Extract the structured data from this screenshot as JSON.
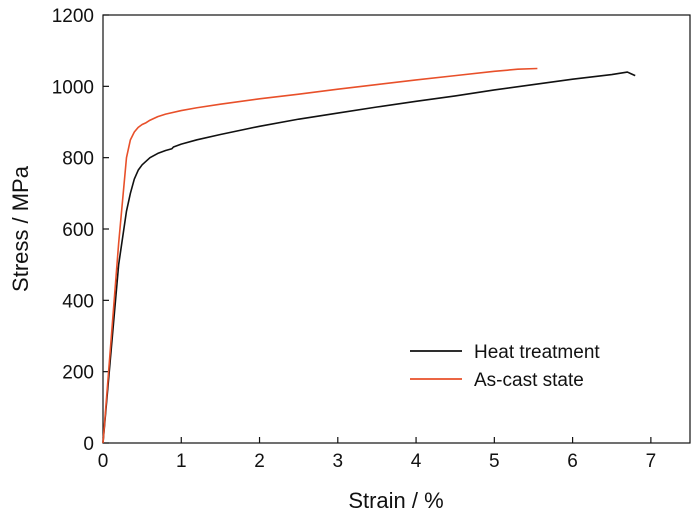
{
  "chart_data": {
    "type": "line",
    "title": "",
    "xlabel": "Strain / %",
    "ylabel": "Stress / MPa",
    "xlim": [
      0,
      7.5
    ],
    "ylim": [
      0,
      1200
    ],
    "xticks": [
      "0",
      "1",
      "2",
      "3",
      "4",
      "5",
      "6",
      "7"
    ],
    "yticks": [
      "0",
      "200",
      "400",
      "600",
      "800",
      "1000",
      "1200"
    ],
    "grid": false,
    "legend_position": "lower-right",
    "series": [
      {
        "name": "Heat treatment",
        "color": "#111111",
        "x": [
          0,
          0.1,
          0.2,
          0.3,
          0.35,
          0.4,
          0.45,
          0.5,
          0.6,
          0.7,
          0.8,
          0.88,
          0.9,
          1.0,
          1.2,
          1.5,
          2.0,
          2.5,
          3.0,
          3.5,
          4.0,
          4.5,
          5.0,
          5.5,
          6.0,
          6.5,
          6.7,
          6.75,
          6.8
        ],
        "y": [
          0,
          250,
          500,
          650,
          700,
          740,
          765,
          780,
          800,
          812,
          820,
          825,
          830,
          838,
          850,
          865,
          888,
          908,
          925,
          942,
          958,
          973,
          990,
          1005,
          1020,
          1033,
          1040,
          1035,
          1030
        ]
      },
      {
        "name": "As-cast state",
        "color": "#e8502a",
        "x": [
          0,
          0.1,
          0.2,
          0.3,
          0.35,
          0.4,
          0.45,
          0.5,
          0.55,
          0.6,
          0.7,
          0.8,
          1.0,
          1.2,
          1.5,
          2.0,
          2.5,
          3.0,
          3.5,
          4.0,
          4.5,
          5.0,
          5.3,
          5.55
        ],
        "y": [
          0,
          280,
          560,
          800,
          850,
          872,
          885,
          893,
          898,
          905,
          915,
          922,
          932,
          940,
          950,
          965,
          978,
          992,
          1005,
          1018,
          1030,
          1042,
          1048,
          1050
        ]
      }
    ]
  }
}
